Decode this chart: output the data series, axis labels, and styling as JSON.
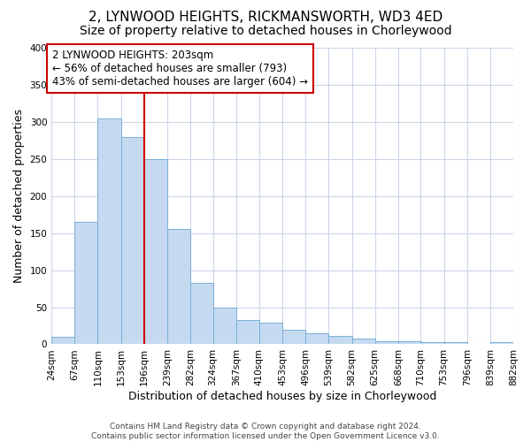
{
  "title": "2, LYNWOOD HEIGHTS, RICKMANSWORTH, WD3 4ED",
  "subtitle": "Size of property relative to detached houses in Chorleywood",
  "xlabel": "Distribution of detached houses by size in Chorleywood",
  "ylabel": "Number of detached properties",
  "bar_left_edges": [
    24,
    67,
    110,
    153,
    196,
    239,
    282,
    324,
    367,
    410,
    453,
    496,
    539,
    582,
    625,
    668,
    710,
    753,
    796,
    839
  ],
  "bar_heights": [
    10,
    165,
    305,
    280,
    250,
    155,
    83,
    50,
    33,
    29,
    20,
    15,
    11,
    8,
    4,
    4,
    3,
    3,
    1,
    3
  ],
  "bin_width": 43,
  "tick_labels": [
    "24sqm",
    "67sqm",
    "110sqm",
    "153sqm",
    "196sqm",
    "239sqm",
    "282sqm",
    "324sqm",
    "367sqm",
    "410sqm",
    "453sqm",
    "496sqm",
    "539sqm",
    "582sqm",
    "625sqm",
    "668sqm",
    "710sqm",
    "753sqm",
    "796sqm",
    "839sqm",
    "882sqm"
  ],
  "bar_color": "#c5daf0",
  "bar_edge_color": "#7ab0d8",
  "property_line_x": 196,
  "property_line_color": "#cc0000",
  "annotation_box_color": "#cc0000",
  "annotation_title": "2 LYNWOOD HEIGHTS: 203sqm",
  "annotation_line1": "← 56% of detached houses are smaller (793)",
  "annotation_line2": "43% of semi-detached houses are larger (604) →",
  "ylim": [
    0,
    400
  ],
  "yticks": [
    0,
    50,
    100,
    150,
    200,
    250,
    300,
    350,
    400
  ],
  "footer1": "Contains HM Land Registry data © Crown copyright and database right 2024.",
  "footer2": "Contains public sector information licensed under the Open Government Licence v3.0.",
  "background_color": "#ffffff",
  "grid_color": "#ccd6e8",
  "title_fontsize": 11,
  "subtitle_fontsize": 10,
  "axis_label_fontsize": 9,
  "tick_fontsize": 7.5,
  "annotation_fontsize": 8.5,
  "footer_fontsize": 6.5
}
